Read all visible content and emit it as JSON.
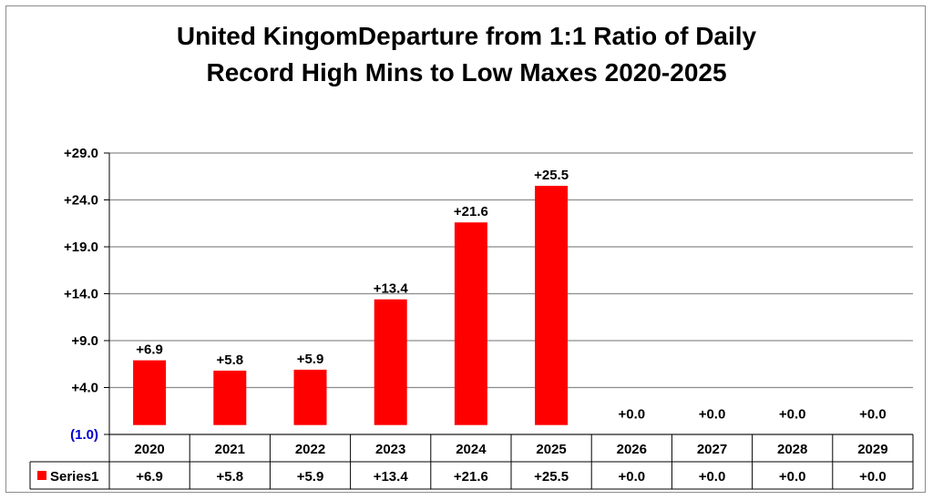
{
  "chart_data": {
    "type": "bar",
    "title_lines": [
      "United KingomDeparture from 1:1 Ratio of Daily",
      "Record High Mins to Low Maxes 2020-2025"
    ],
    "categories": [
      "2020",
      "2021",
      "2022",
      "2023",
      "2024",
      "2025",
      "2026",
      "2027",
      "2028",
      "2029"
    ],
    "series": [
      {
        "name": "Series1",
        "values": [
          6.9,
          5.8,
          5.9,
          13.4,
          21.6,
          25.5,
          0.0,
          0.0,
          0.0,
          0.0
        ],
        "labels": [
          "+6.9",
          "+5.8",
          "+5.9",
          "+13.4",
          "+21.6",
          "+25.5",
          "+0.0",
          "+0.0",
          "+0.0",
          "+0.0"
        ],
        "color": "#ff0000"
      }
    ],
    "ylim": [
      -1.0,
      29.0
    ],
    "yticks": [
      -1.0,
      4.0,
      9.0,
      14.0,
      19.0,
      24.0,
      29.0
    ],
    "ytick_labels": [
      "(1.0)",
      "+4.0",
      "+9.0",
      "+14.0",
      "+19.0",
      "+24.0",
      "+29.0"
    ],
    "ytick_colors": [
      "#0000cc",
      "#000000",
      "#000000",
      "#000000",
      "#000000",
      "#000000",
      "#000000"
    ],
    "grid": true,
    "legend": "data-table",
    "data_table": true
  }
}
